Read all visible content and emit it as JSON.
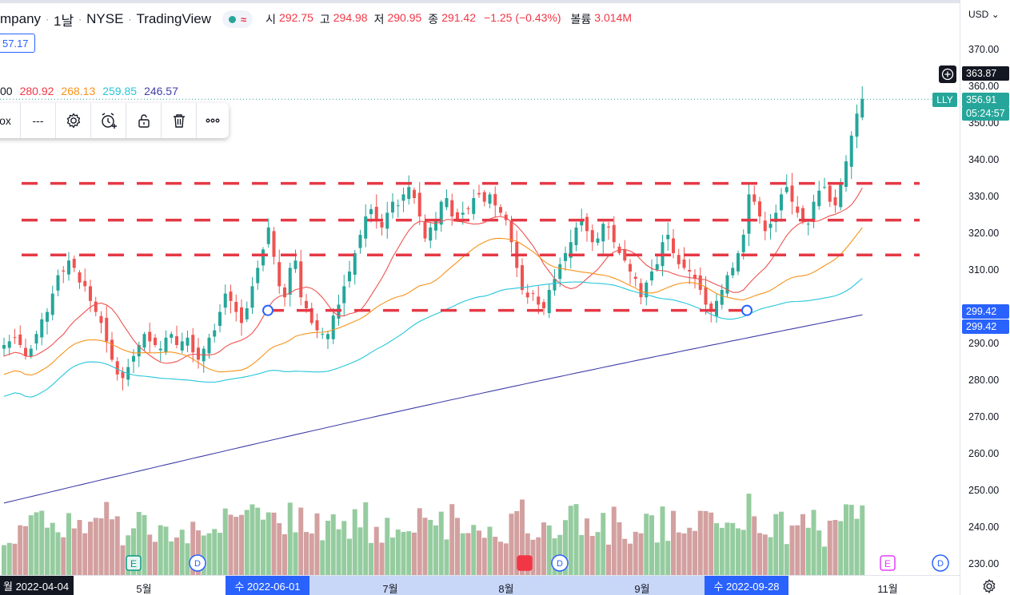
{
  "header": {
    "title": "mpany",
    "interval": "1날",
    "exchange": "NYSE",
    "source": "TradingView",
    "ohlc": [
      {
        "k": "시",
        "v": "292.75"
      },
      {
        "k": "고",
        "v": "294.98"
      },
      {
        "k": "저",
        "v": "290.95"
      },
      {
        "k": "종",
        "v": "291.42"
      },
      {
        "k": "",
        "v": "−1.25 (−0.43%)"
      },
      {
        "k": "볼륨",
        "v": "3.014M"
      }
    ],
    "price_box": "57.17"
  },
  "ma_legend": {
    "values": [
      {
        "text": "00",
        "color": "#131722"
      },
      {
        "text": "280.92",
        "color": "#f23645"
      },
      {
        "text": "268.13",
        "color": "#f7931a"
      },
      {
        "text": "259.85",
        "color": "#26c6da"
      },
      {
        "text": "246.57",
        "color": "#3f3fa8"
      }
    ]
  },
  "toolbar": {
    "box_label": "ox",
    "line_style": "---",
    "icons": [
      "settings-icon",
      "alarm-icon",
      "unlock-icon",
      "trash-icon",
      "more-icon"
    ]
  },
  "price_axis": {
    "currency": "USD",
    "ticks": [
      "370.00",
      "360.00",
      "350.00",
      "340.00",
      "330.00",
      "320.00",
      "310.00",
      "290.00",
      "280.00",
      "270.00",
      "260.00",
      "250.00",
      "240.00",
      "230.00"
    ],
    "crosshair_price": "363.87",
    "last_price": "356.91",
    "countdown": "05:24:57",
    "symbol": "LLY",
    "level_a": "299.42",
    "level_b": "299.42"
  },
  "time_axis": {
    "left_date": "월 2022-04-04",
    "ticks": [
      "5월",
      "7월",
      "8월",
      "9월",
      "11월"
    ],
    "sel1": "수 2022-06-01",
    "sel2": "수 2022-09-28"
  },
  "colors": {
    "up": "#26a69a",
    "down": "#ef5350",
    "ma20": "#ef5350",
    "ma50": "#f7931a",
    "ma100": "#26c6da",
    "ma200": "#3f3fa8",
    "hline": "#e53946"
  },
  "chart_data": {
    "type": "candlestick",
    "ylim": [
      228,
      375
    ],
    "hlines": [
      334,
      324,
      314.5,
      299.42
    ],
    "closes": [
      290,
      291,
      292,
      290,
      287,
      289,
      293,
      297,
      299,
      304,
      309,
      310,
      313,
      311,
      307,
      306,
      302,
      299,
      296,
      291,
      286,
      282,
      281,
      284,
      287,
      290,
      293,
      291,
      290,
      289,
      292,
      293,
      290,
      291,
      292,
      288,
      286,
      289,
      292,
      294,
      299,
      304,
      302,
      299,
      296,
      300,
      306,
      311,
      316,
      322,
      314,
      306,
      303,
      311,
      313,
      303,
      300,
      296,
      294,
      293,
      293,
      298,
      301,
      306,
      310,
      315,
      320,
      325,
      327,
      324,
      322,
      326,
      329,
      328,
      331,
      333,
      330,
      325,
      319,
      322,
      324,
      329,
      330,
      325,
      324,
      326,
      327,
      330,
      331,
      329,
      331,
      328,
      326,
      324,
      318,
      311,
      305,
      303,
      304,
      301,
      300,
      305,
      308,
      312,
      315,
      318,
      322,
      324,
      321,
      318,
      319,
      323,
      322,
      318,
      315,
      313,
      310,
      308,
      303,
      307,
      310,
      312,
      318,
      320,
      315,
      312,
      311,
      310,
      308,
      305,
      301,
      299,
      302,
      305,
      309,
      311,
      315,
      320,
      331,
      329,
      325,
      321,
      323,
      326,
      331,
      333,
      329,
      326,
      324,
      323,
      329,
      332,
      333,
      329,
      328,
      334,
      340,
      347,
      353,
      357
    ]
  }
}
